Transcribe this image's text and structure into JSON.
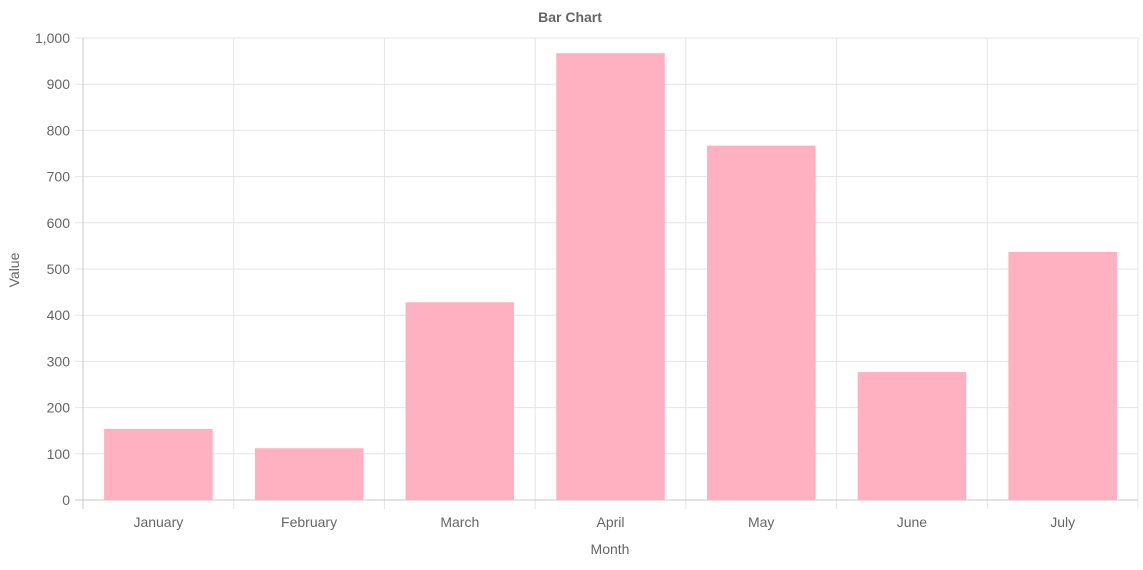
{
  "chart_data": {
    "type": "bar",
    "title": "Bar Chart",
    "xlabel": "Month",
    "ylabel": "Value",
    "categories": [
      "January",
      "February",
      "March",
      "April",
      "May",
      "June",
      "July"
    ],
    "values": [
      154,
      112,
      428,
      967,
      767,
      277,
      537
    ],
    "ylim": [
      0,
      1000
    ],
    "yticks": [
      0,
      100,
      200,
      300,
      400,
      500,
      600,
      700,
      800,
      900,
      1000
    ],
    "ytick_labels": [
      "0",
      "100",
      "200",
      "300",
      "400",
      "500",
      "600",
      "700",
      "800",
      "900",
      "1,000"
    ],
    "grid": true,
    "legend": "none",
    "colors": {
      "bar_fill": "#ffb1c1",
      "grid": "#e5e5e5",
      "text": "#666666"
    }
  }
}
